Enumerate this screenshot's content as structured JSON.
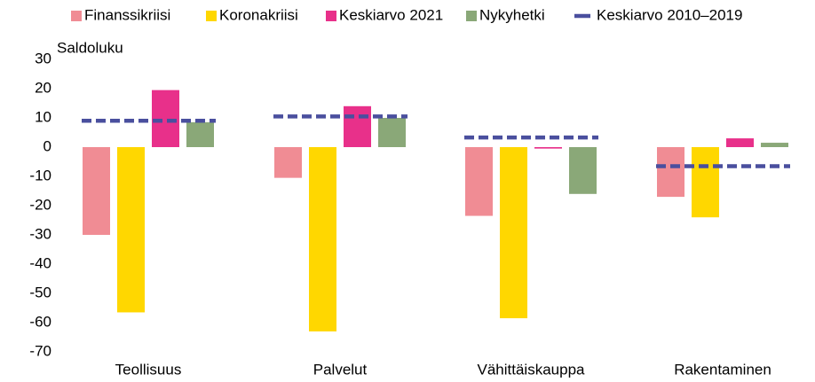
{
  "chart_data": {
    "type": "bar",
    "y_label": "Saldoluku",
    "categories": [
      "Teollisuus",
      "Palvelut",
      "Vähittäiskauppa",
      "Rakentaminen"
    ],
    "series": [
      {
        "name": "Finanssikriisi",
        "color": "#f08c94",
        "values": [
          -30,
          -10.5,
          -23.5,
          -17
        ]
      },
      {
        "name": "Koronakriisi",
        "color": "#ffd700",
        "values": [
          -56.5,
          -63,
          -58.5,
          -24
        ]
      },
      {
        "name": "Keskiarvo 2021",
        "color": "#e8308a",
        "values": [
          19.5,
          14,
          -0.5,
          3
        ]
      },
      {
        "name": "Nykyhetki",
        "color": "#8aa878",
        "values": [
          8.5,
          10,
          -16,
          1.5
        ]
      },
      {
        "name": "Keskiarvo 2010–2019",
        "color": "#4a4f9e",
        "type": "line",
        "dashed": true,
        "values": [
          9,
          10.5,
          3.3,
          -6.5
        ]
      }
    ],
    "ylim": [
      -70,
      30
    ],
    "yticks": [
      -70,
      -60,
      -50,
      -40,
      -30,
      -20,
      -10,
      0,
      10,
      20,
      30
    ],
    "grid": false,
    "legend": "top"
  }
}
